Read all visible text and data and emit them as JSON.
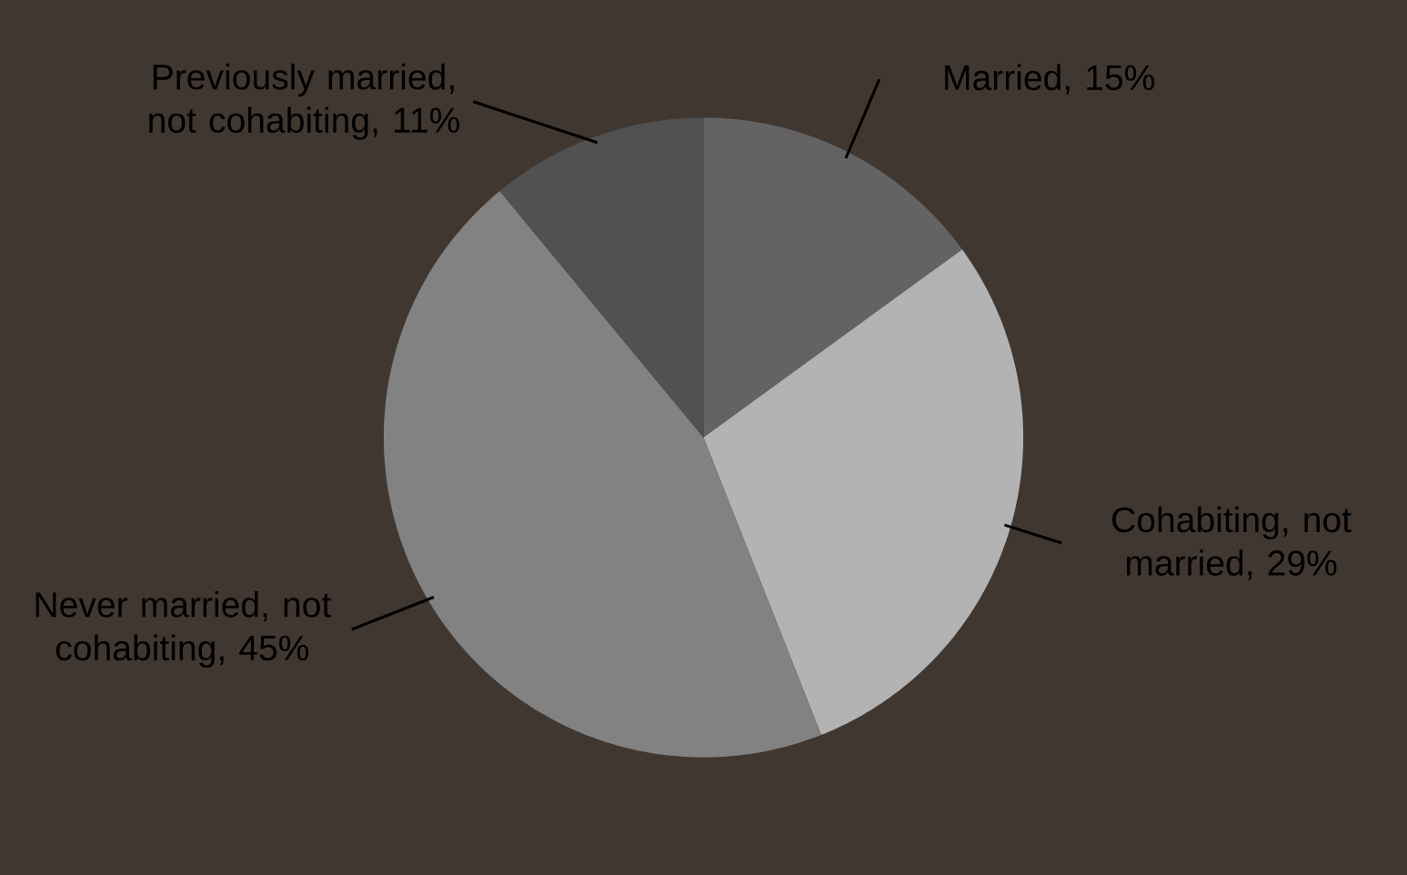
{
  "chart_data": {
    "type": "pie",
    "categories": [
      "Married, 15%",
      "Cohabiting, not married, 29%",
      "Never married, not cohabiting, 45%",
      "Previously married, not cohabiting, 11%"
    ],
    "values": [
      15,
      29,
      45,
      11
    ],
    "colors": [
      "#636363",
      "#b3b3b3",
      "#828282",
      "#515151"
    ]
  }
}
